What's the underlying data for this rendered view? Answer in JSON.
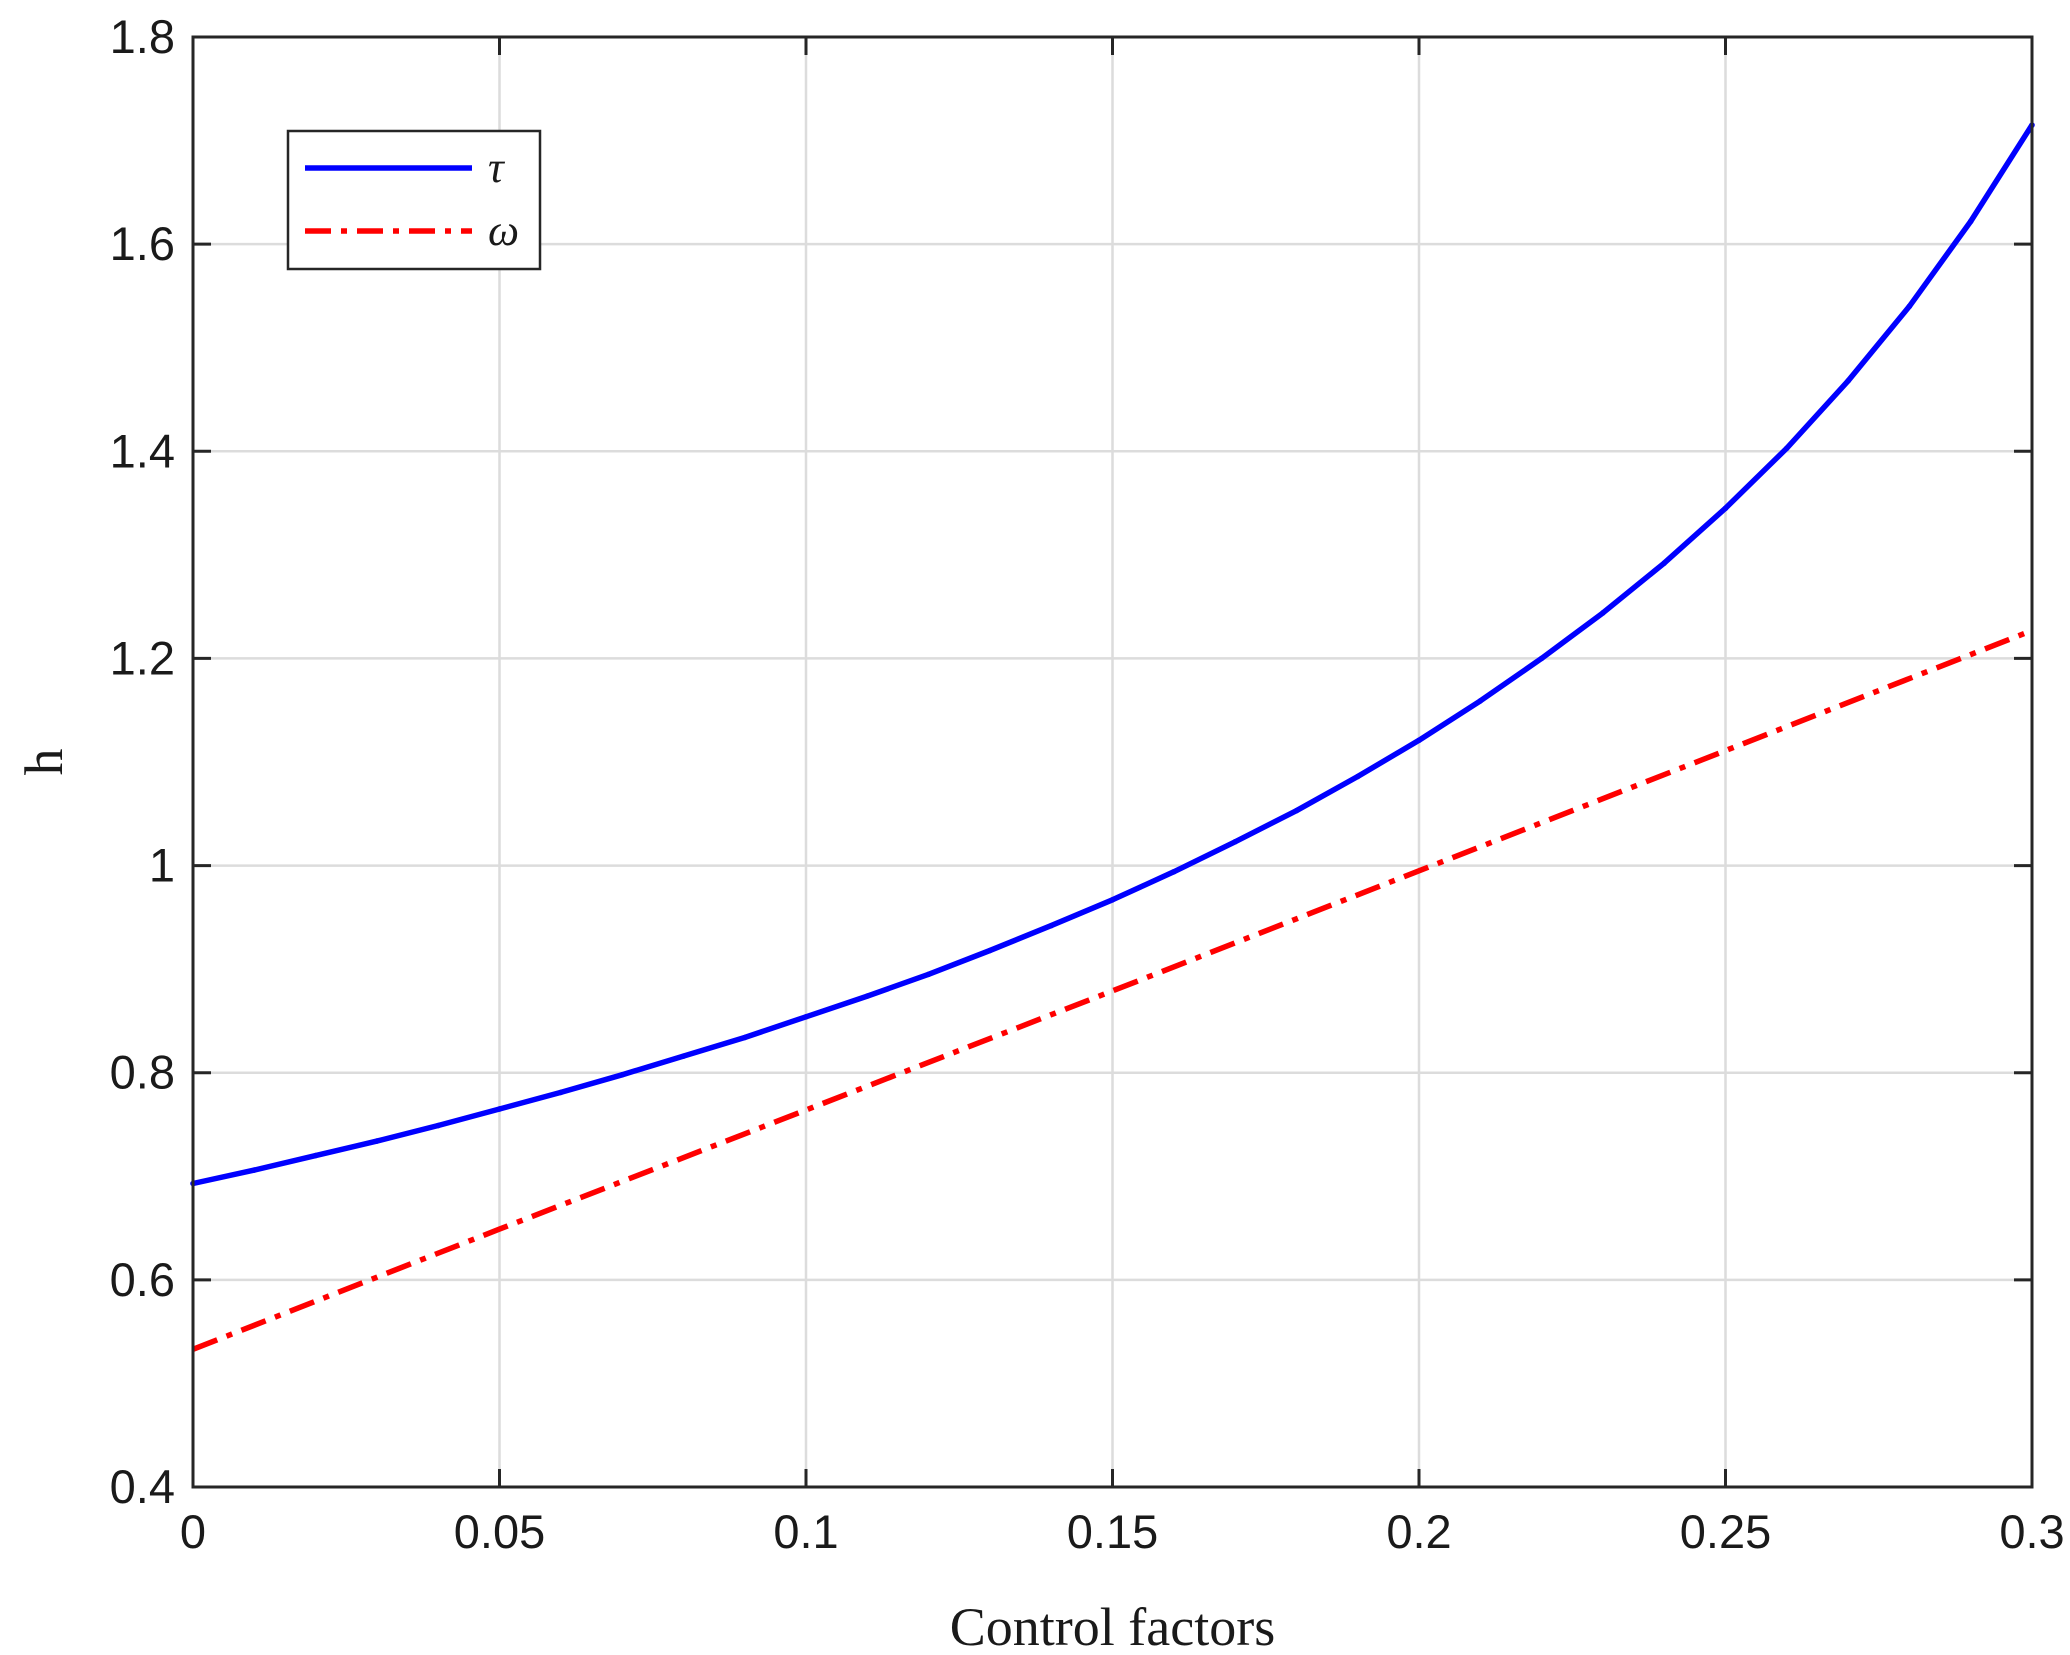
{
  "chart_data": {
    "type": "line",
    "xlabel": "Control factors",
    "ylabel": "h",
    "xlim": [
      0,
      0.3
    ],
    "ylim": [
      0.4,
      1.8
    ],
    "x_ticks": [
      0,
      0.05,
      0.1,
      0.15,
      0.2,
      0.25,
      0.3
    ],
    "x_tick_labels": [
      "0",
      "0.05",
      "0.1",
      "0.15",
      "0.2",
      "0.25",
      "0.3"
    ],
    "y_ticks": [
      0.4,
      0.6,
      0.8,
      1.0,
      1.2,
      1.4,
      1.6,
      1.8
    ],
    "y_tick_labels": [
      "0.4",
      "0.6",
      "0.8",
      "1",
      "1.2",
      "1.4",
      "1.6",
      "1.8"
    ],
    "grid": true,
    "legend_position": "top-left",
    "series": [
      {
        "name": "τ",
        "color": "#0000ff",
        "line_style": "solid",
        "x": [
          0,
          0.01,
          0.02,
          0.03,
          0.04,
          0.05,
          0.06,
          0.07,
          0.08,
          0.09,
          0.1,
          0.11,
          0.12,
          0.13,
          0.14,
          0.15,
          0.16,
          0.17,
          0.18,
          0.19,
          0.2,
          0.21,
          0.22,
          0.23,
          0.24,
          0.25,
          0.26,
          0.27,
          0.28,
          0.29,
          0.3
        ],
        "values": [
          0.693,
          0.706,
          0.72,
          0.734,
          0.749,
          0.765,
          0.781,
          0.798,
          0.816,
          0.834,
          0.854,
          0.874,
          0.895,
          0.918,
          0.942,
          0.967,
          0.994,
          1.023,
          1.053,
          1.086,
          1.121,
          1.159,
          1.2,
          1.244,
          1.292,
          1.345,
          1.403,
          1.468,
          1.54,
          1.622,
          1.715
        ]
      },
      {
        "name": "ω",
        "color": "#ff0000",
        "line_style": "dash-dot",
        "x": [
          0,
          0.05,
          0.1,
          0.15,
          0.2,
          0.25,
          0.3
        ],
        "values": [
          0.533,
          0.649,
          0.764,
          0.879,
          0.995,
          1.111,
          1.227
        ]
      }
    ]
  }
}
